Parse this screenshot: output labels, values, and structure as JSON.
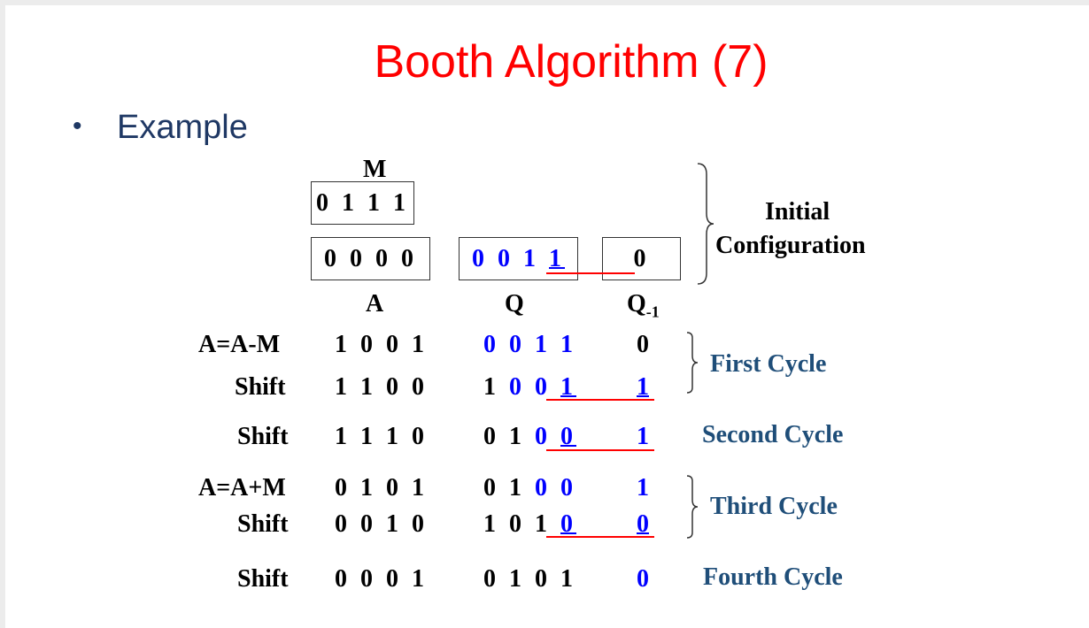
{
  "slide": {
    "title": "Booth Algorithm (7)",
    "bullet_symbol": "•",
    "bullet_text": "Example"
  },
  "registers": {
    "m_label": "M",
    "m_value": "0 1 1 1",
    "a_initial": "0 0 0 0",
    "q_initial": "0 0 1 1",
    "q_initial_prefix": "0 0 1 ",
    "q_initial_lsb": "1",
    "q1_initial": "0",
    "a_label": "A",
    "q_label": "Q",
    "q1_label": "Q",
    "q1_subscript": "-1"
  },
  "initial_caption_line1": "Initial",
  "initial_caption_line2": "Configuration",
  "steps": [
    {
      "op": "A=A-M",
      "a": "1 0 0 1",
      "q_prefix": "0 0 1 1",
      "q_lsb": "",
      "q1": "0"
    },
    {
      "op": "Shift",
      "a": "1 1 0 0",
      "q_prefix": "1 ",
      "q_blue": "0 0 ",
      "q_lsb": "1",
      "q1": "1"
    },
    {
      "op": "Shift",
      "a": "1 1 1 0",
      "q_prefix": "0 1 ",
      "q_blue": "0 ",
      "q_lsb": "0",
      "q1": "1"
    },
    {
      "op": "A=A+M",
      "a": "0 1 0 1",
      "q_prefix": "0 1 ",
      "q_blue": "0 0",
      "q_lsb": "",
      "q1": "1"
    },
    {
      "op": "Shift",
      "a": "0 0 1 0",
      "q_prefix": "1 0 1 ",
      "q_blue": "",
      "q_lsb": "0",
      "q1": "0"
    },
    {
      "op": "Shift",
      "a": "0 0 0 1",
      "q_prefix": "0 1 0 1",
      "q_blue": "",
      "q_lsb": "",
      "q1": "0"
    }
  ],
  "cycles": {
    "first": "First Cycle",
    "second": "Second Cycle",
    "third": "Third Cycle",
    "fourth": "Fourth Cycle"
  },
  "colors": {
    "title": "#ff0000",
    "bullet": "#1f3864",
    "register_blue": "#0000ff",
    "cycle_label": "#1f4e79",
    "marker_line": "#ff0000"
  }
}
